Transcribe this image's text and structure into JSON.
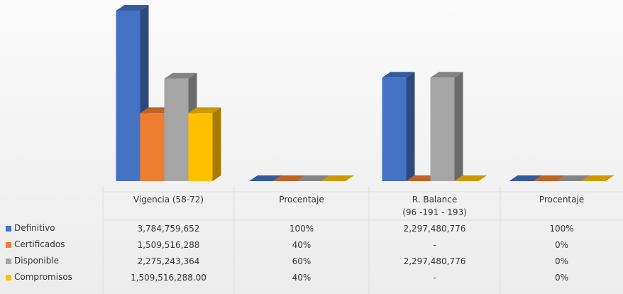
{
  "chart_data": {
    "type": "bar3d",
    "categories": [
      "Vigencia (58-72)",
      "Procentaje",
      "R. Balance\n(96 -191 - 193)",
      "Procentaje"
    ],
    "series": [
      {
        "name": "Definitivo",
        "color": "#4472c4",
        "values": [
          3784759652,
          100,
          2297480776,
          100
        ],
        "value_labels": [
          "3,784,759,652",
          "100%",
          "2,297,480,776",
          "100%"
        ]
      },
      {
        "name": "Certificados",
        "color": "#ed7d31",
        "values": [
          1509516288,
          40,
          0,
          0
        ],
        "value_labels": [
          "1,509,516,288",
          "40%",
          "-",
          "0%"
        ]
      },
      {
        "name": "Disponible",
        "color": "#a5a5a5",
        "values": [
          2275243364,
          60,
          2297480776,
          0
        ],
        "value_labels": [
          "2,275,243,364",
          "60%",
          "2,297,480,776",
          "0%"
        ]
      },
      {
        "name": "Compromisos",
        "color": "#ffc000",
        "values": [
          1509516288,
          40,
          0,
          0
        ],
        "value_labels": [
          "1,509,516,288.00",
          "40%",
          "-",
          "0%"
        ]
      }
    ]
  }
}
